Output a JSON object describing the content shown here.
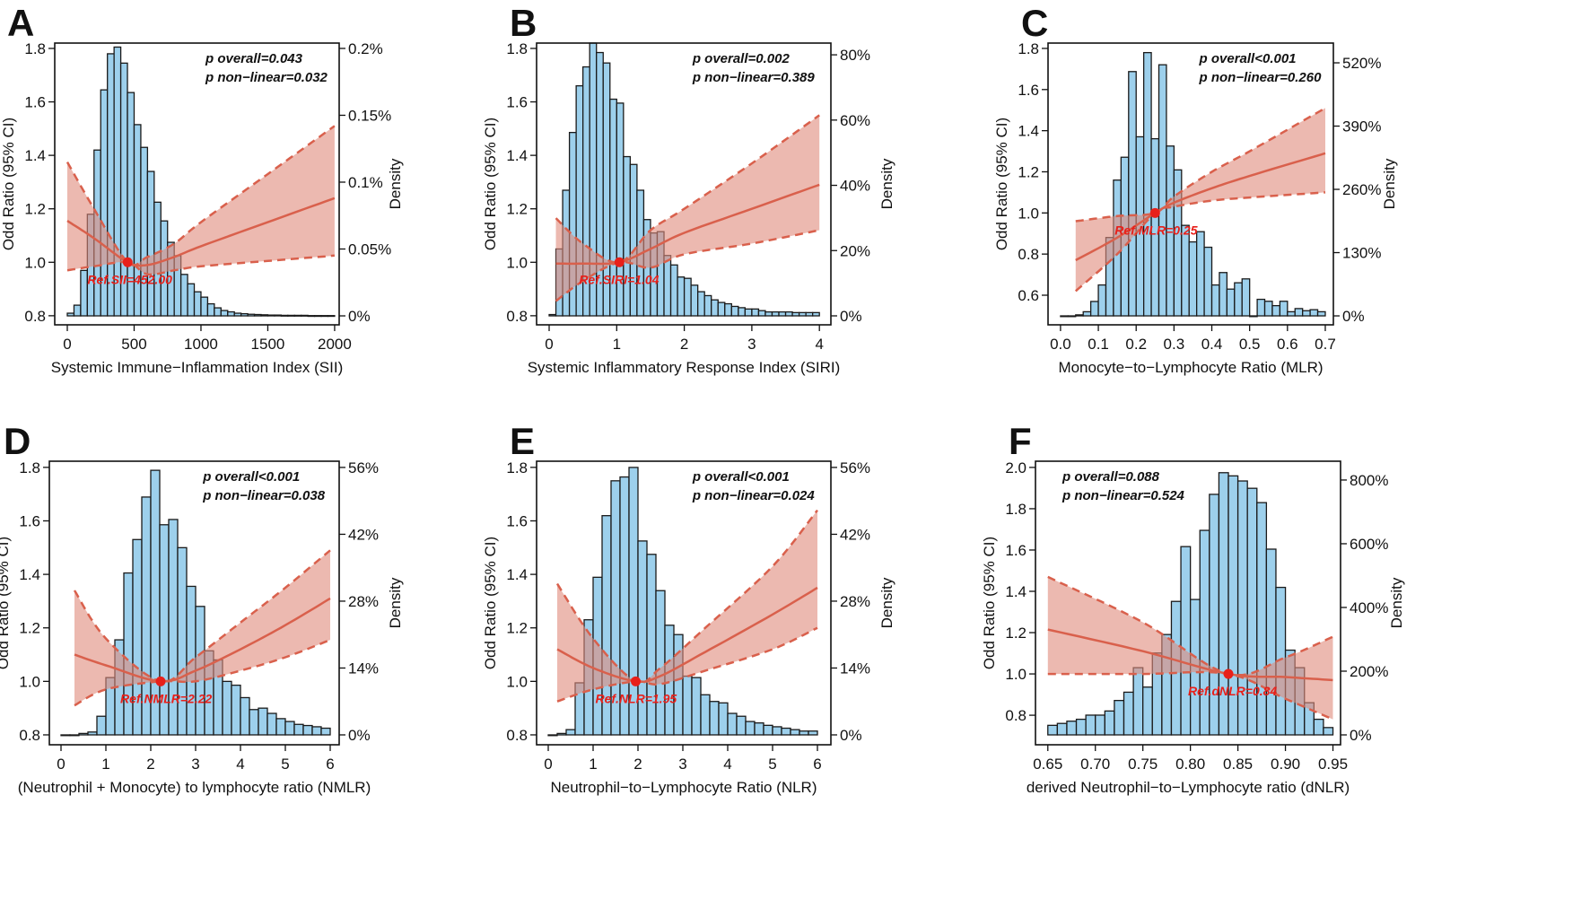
{
  "colors": {
    "bar_fill": "#9dd0ec",
    "bar_stroke": "#1a1a1a",
    "band": "#df8a7c",
    "line": "#d9604c",
    "ref_point": "#e8201a",
    "ref_text": "#e8201a"
  },
  "chart_data": [
    {
      "panel": "A",
      "type": "bar+line",
      "xlabel": "Systemic Immune−Inflammation Index (SII)",
      "ylabel": "Odd Ratio (95% CI)",
      "y2label": "Density",
      "xlim": [
        -94,
        2034
      ],
      "ylim": [
        0.766,
        1.82
      ],
      "y2lim": [
        -0.0067,
        0.204
      ],
      "xticks": [
        0,
        500,
        1000,
        1500,
        2000
      ],
      "xtick_labels": [
        "0",
        "500",
        "1000",
        "1500",
        "2000"
      ],
      "yticks": [
        0.8,
        1.0,
        1.2,
        1.4,
        1.6,
        1.8
      ],
      "ytick_labels": [
        "0.8",
        "1.0",
        "1.2",
        "1.4",
        "1.6",
        "1.8"
      ],
      "y2ticks": [
        0,
        0.05,
        0.1,
        0.15,
        0.2
      ],
      "y2tick_labels": [
        "0%",
        "0.05%",
        "0.1%",
        "0.15%",
        "0.2%"
      ],
      "p_overall": "p overall=0.043",
      "p_nonlinear": "p non−linear=0.032",
      "p_position": "top-right",
      "ref": {
        "x": 452,
        "or": 1.0,
        "label": "Ref.SII=452.00"
      },
      "hist": {
        "start": 0,
        "width": 50,
        "density": [
          0.002,
          0.008,
          0.034,
          0.076,
          0.124,
          0.169,
          0.196,
          0.201,
          0.189,
          0.167,
          0.143,
          0.126,
          0.108,
          0.085,
          0.071,
          0.055,
          0.045,
          0.031,
          0.024,
          0.018,
          0.014,
          0.009,
          0.006,
          0.004,
          0.003,
          0.002,
          0.0016,
          0.0012,
          0.001,
          0.0008,
          0.0006,
          0.0006,
          0.0004,
          0.0004,
          0.0004,
          0.0004,
          0.0002,
          0.0002,
          0.0002,
          0.0002
        ]
      },
      "curve": {
        "x": [
          0,
          200,
          452,
          600,
          800,
          1000,
          1500,
          2000
        ],
        "or": [
          1.155,
          1.09,
          1.0,
          0.99,
          1.02,
          1.06,
          1.15,
          1.24
        ],
        "lower": [
          0.97,
          0.985,
          1.0,
          0.955,
          0.97,
          0.985,
          1.005,
          1.025
        ],
        "upper": [
          1.375,
          1.2,
          1.0,
          1.02,
          1.07,
          1.15,
          1.33,
          1.51
        ]
      }
    },
    {
      "panel": "B",
      "type": "bar+line",
      "xlabel": "Systemic Inflammatory Response Index (SIRI)",
      "ylabel": "Odd Ratio (95% CI)",
      "y2label": "Density",
      "xlim": [
        -0.186,
        4.17
      ],
      "ylim": [
        0.766,
        1.82
      ],
      "y2lim": [
        -2.75,
        83.6
      ],
      "xticks": [
        0,
        1,
        2,
        3,
        4
      ],
      "xtick_labels": [
        "0",
        "1",
        "2",
        "3",
        "4"
      ],
      "yticks": [
        0.8,
        1.0,
        1.2,
        1.4,
        1.6,
        1.8
      ],
      "ytick_labels": [
        "0.8",
        "1.0",
        "1.2",
        "1.4",
        "1.6",
        "1.8"
      ],
      "y2ticks": [
        0,
        20,
        40,
        60,
        80
      ],
      "y2tick_labels": [
        "0%",
        "20%",
        "40%",
        "60%",
        "80%"
      ],
      "p_overall": "p overall=0.002",
      "p_nonlinear": "p non−linear=0.389",
      "p_position": "top-right",
      "ref": {
        "x": 1.04,
        "or": 1.0,
        "label": "Ref.SIRI=1.04"
      },
      "hist": {
        "start": 0,
        "width": 0.1,
        "density": [
          0.4,
          20.5,
          38.5,
          56.2,
          70.5,
          76.3,
          83.6,
          80.7,
          77.5,
          66.4,
          65.2,
          48.8,
          46.4,
          38.5,
          29.5,
          25.4,
          25.8,
          18.5,
          15.6,
          11.9,
          11.5,
          9.4,
          7.4,
          6.2,
          4.9,
          4.1,
          3.7,
          2.9,
          2.5,
          2.1,
          2.1,
          1.6,
          1.2,
          1.2,
          1.2,
          1.2,
          1.0,
          1.0,
          1.0,
          1.0
        ]
      },
      "curve": {
        "x": [
          0.1,
          0.5,
          1.04,
          1.5,
          2,
          3,
          4
        ],
        "or": [
          0.995,
          0.995,
          1.0,
          1.05,
          1.11,
          1.2,
          1.29
        ],
        "lower": [
          0.855,
          0.93,
          1.0,
          0.98,
          1.03,
          1.07,
          1.12
        ],
        "upper": [
          1.165,
          1.07,
          1.0,
          1.12,
          1.2,
          1.37,
          1.55
        ]
      }
    },
    {
      "panel": "C",
      "type": "bar+line",
      "xlabel": "Monocyte−to−Lymphocyte Ratio (MLR)",
      "ylabel": "Odd Ratio (95% CI)",
      "y2label": "Density",
      "xlim": [
        -0.033,
        0.7214
      ],
      "ylim": [
        0.456,
        1.826
      ],
      "y2lim": [
        -18.4,
        560.6
      ],
      "xticks": [
        0,
        0.1,
        0.2,
        0.3,
        0.4,
        0.5,
        0.6,
        0.7
      ],
      "xtick_labels": [
        "0.0",
        "0.1",
        "0.2",
        "0.3",
        "0.4",
        "0.5",
        "0.6",
        "0.7"
      ],
      "yticks": [
        0.6,
        0.8,
        1.0,
        1.2,
        1.4,
        1.6,
        1.8
      ],
      "ytick_labels": [
        "0.6",
        "0.8",
        "1.0",
        "1.2",
        "1.4",
        "1.6",
        "1.8"
      ],
      "y2ticks": [
        0,
        130,
        260,
        390,
        520
      ],
      "y2tick_labels": [
        "0%",
        "130%",
        "260%",
        "390%",
        "520%"
      ],
      "p_overall": "p overall<0.001",
      "p_nonlinear": "p non−linear=0.260",
      "p_position": "top-right",
      "ref": {
        "x": 0.25,
        "or": 1.0,
        "label": "Ref.MLR=0.25"
      },
      "hist": {
        "start": 0,
        "width": 0.02,
        "density": [
          0,
          0,
          2.1,
          8.5,
          29.6,
          63.5,
          161,
          279,
          326,
          502,
          368,
          541,
          364,
          516,
          349,
          300,
          186,
          152,
          173,
          141,
          63.5,
          89,
          55,
          68,
          76,
          0,
          34,
          30,
          21,
          30,
          8.5,
          15,
          10.6,
          12.7,
          8.5
        ]
      },
      "curve": {
        "x": [
          0.04,
          0.15,
          0.25,
          0.3,
          0.4,
          0.5,
          0.7
        ],
        "or": [
          0.77,
          0.88,
          1.0,
          1.05,
          1.12,
          1.18,
          1.29
        ],
        "lower": [
          0.62,
          0.8,
          1.0,
          1.03,
          1.06,
          1.075,
          1.1
        ],
        "upper": [
          0.96,
          0.985,
          1.0,
          1.08,
          1.2,
          1.3,
          1.51
        ]
      }
    },
    {
      "panel": "D",
      "type": "bar+line",
      "xlabel": "(Neutrophil + Monocyte) to lymphocyte ratio (NMLR)",
      "ylabel": "Odd Ratio (95% CI)",
      "y2label": "Density",
      "xlim": [
        -0.26,
        6.2
      ],
      "ylim": [
        0.763,
        1.823
      ],
      "y2lim": [
        -2.07,
        57.3
      ],
      "xticks": [
        0,
        1,
        2,
        3,
        4,
        5,
        6
      ],
      "xtick_labels": [
        "0",
        "1",
        "2",
        "3",
        "4",
        "5",
        "6"
      ],
      "yticks": [
        0.8,
        1.0,
        1.2,
        1.4,
        1.6,
        1.8
      ],
      "ytick_labels": [
        "0.8",
        "1.0",
        "1.2",
        "1.4",
        "1.6",
        "1.8"
      ],
      "y2ticks": [
        0,
        14,
        28,
        42,
        56
      ],
      "y2tick_labels": [
        "0%",
        "14%",
        "28%",
        "42%",
        "56%"
      ],
      "p_overall": "p overall<0.001",
      "p_nonlinear": "p non−linear=0.038",
      "p_position": "top-right",
      "ref": {
        "x": 2.22,
        "or": 1.0,
        "label": "Ref.NMLR=2.22"
      },
      "hist": {
        "start": 0,
        "width": 0.2,
        "density": [
          0,
          0,
          0.3,
          0.6,
          3.9,
          12.0,
          19.9,
          33.9,
          40.9,
          49.8,
          55.4,
          44.0,
          45.1,
          39.2,
          31.1,
          26.9,
          17.6,
          15.7,
          11.2,
          10.4,
          7.8,
          5.3,
          5.6,
          4.5,
          3.4,
          2.8,
          2.2,
          1.96,
          1.7,
          1.4
        ]
      },
      "curve": {
        "x": [
          0.3,
          1,
          2.22,
          3,
          4,
          5,
          6
        ],
        "or": [
          1.1,
          1.06,
          1.0,
          1.04,
          1.12,
          1.21,
          1.31
        ],
        "lower": [
          0.91,
          0.97,
          1.0,
          1.0,
          1.04,
          1.09,
          1.155
        ],
        "upper": [
          1.34,
          1.16,
          1.0,
          1.09,
          1.22,
          1.35,
          1.49
        ]
      }
    },
    {
      "panel": "E",
      "type": "bar+line",
      "xlabel": "Neutrophil−to−Lymphocyte Ratio (NLR)",
      "ylabel": "Odd Ratio (95% CI)",
      "y2label": "Density",
      "xlim": [
        -0.26,
        6.3
      ],
      "ylim": [
        0.763,
        1.823
      ],
      "y2lim": [
        -2.07,
        57.3
      ],
      "xticks": [
        0,
        1,
        2,
        3,
        4,
        5,
        6
      ],
      "xtick_labels": [
        "0",
        "1",
        "2",
        "3",
        "4",
        "5",
        "6"
      ],
      "yticks": [
        0.8,
        1.0,
        1.2,
        1.4,
        1.6,
        1.8
      ],
      "ytick_labels": [
        "0.8",
        "1.0",
        "1.2",
        "1.4",
        "1.6",
        "1.8"
      ],
      "y2ticks": [
        0,
        14,
        28,
        42,
        56
      ],
      "y2tick_labels": [
        "0%",
        "14%",
        "28%",
        "42%",
        "56%"
      ],
      "p_overall": "p overall<0.001",
      "p_nonlinear": "p non−linear=0.024",
      "p_position": "top-right",
      "ref": {
        "x": 1.95,
        "or": 1.0,
        "label": "Ref.NLR=1.95"
      },
      "hist": {
        "start": 0,
        "width": 0.2,
        "density": [
          0,
          0.3,
          1.1,
          10.9,
          24.1,
          33.0,
          45.9,
          53.2,
          54.0,
          56.0,
          40.6,
          37.8,
          30.2,
          22.96,
          21.0,
          12.3,
          12.0,
          8.4,
          7.0,
          6.7,
          4.5,
          3.9,
          2.8,
          2.5,
          2.0,
          1.7,
          1.4,
          1.1,
          0.8,
          0.8
        ]
      },
      "curve": {
        "x": [
          0.2,
          1,
          1.95,
          2.5,
          3.5,
          5,
          6
        ],
        "or": [
          1.12,
          1.05,
          1.0,
          1.02,
          1.11,
          1.25,
          1.35
        ],
        "lower": [
          0.925,
          0.97,
          1.0,
          0.99,
          1.04,
          1.12,
          1.2
        ],
        "upper": [
          1.365,
          1.16,
          1.0,
          1.05,
          1.2,
          1.43,
          1.64
        ]
      }
    },
    {
      "panel": "F",
      "type": "bar+line",
      "xlabel": "derived Neutrophil−to−Lymphocyte ratio (dNLR)",
      "ylabel": "Odd Ratio (95% CI)",
      "y2label": "Density",
      "xlim": [
        0.637,
        0.958
      ],
      "ylim": [
        0.657,
        2.03
      ],
      "y2lim": [
        -31,
        859
      ],
      "xticks": [
        0.65,
        0.7,
        0.75,
        0.8,
        0.85,
        0.9,
        0.95
      ],
      "xtick_labels": [
        "0.65",
        "0.70",
        "0.75",
        "0.80",
        "0.85",
        "0.90",
        "0.95"
      ],
      "yticks": [
        0.8,
        1.0,
        1.2,
        1.4,
        1.6,
        1.8,
        2.0
      ],
      "ytick_labels": [
        "0.8",
        "1.0",
        "1.2",
        "1.4",
        "1.6",
        "1.8",
        "2.0"
      ],
      "y2ticks": [
        0,
        200,
        400,
        600,
        800
      ],
      "y2tick_labels": [
        "0%",
        "200%",
        "400%",
        "600%",
        "800%"
      ],
      "p_overall": "p overall=0.088",
      "p_nonlinear": "p non−linear=0.524",
      "p_position": "top-left",
      "ref": {
        "x": 0.84,
        "or": 1.0,
        "label": "Ref.dNLR=0.84"
      },
      "hist": {
        "start": 0.65,
        "width": 0.01,
        "density": [
          30,
          36,
          43,
          49,
          62,
          62,
          75,
          108,
          134,
          211,
          150,
          257,
          315,
          419,
          591,
          425,
          642,
          755,
          823,
          813,
          797,
          774,
          729,
          583,
          463,
          266,
          211,
          101,
          49,
          23
        ]
      },
      "curve": {
        "x": [
          0.65,
          0.75,
          0.84,
          0.9,
          0.95
        ],
        "or": [
          1.215,
          1.11,
          1.0,
          0.985,
          0.97
        ],
        "lower": [
          1.0,
          1.0,
          1.0,
          0.88,
          0.78
        ],
        "upper": [
          1.47,
          1.25,
          1.0,
          1.08,
          1.18
        ]
      }
    }
  ]
}
